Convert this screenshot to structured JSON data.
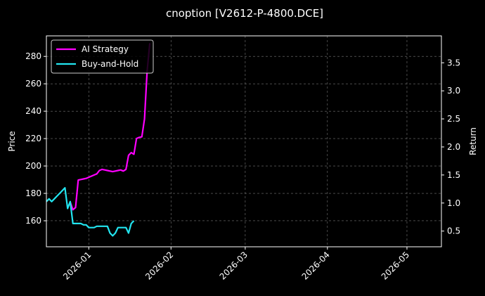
{
  "chart_data": {
    "type": "line",
    "title": "cnoption [V2612-P-4800.DCE]",
    "ylabel_left": "Price",
    "ylabel_right": "Return",
    "xlabel": "",
    "grid": true,
    "legend_position": "top-left",
    "x_range": [
      "2025-12-16",
      "2026-05-14"
    ],
    "ylim_left": [
      141,
      295
    ],
    "ylim_right": [
      0.22,
      3.98
    ],
    "x_ticks": [
      "2026-01-01",
      "2026-02-01",
      "2026-03-01",
      "2026-04-01",
      "2026-05-01"
    ],
    "x_tick_labels": [
      "2026-01",
      "2026-02",
      "2026-03",
      "2026-04",
      "2026-05"
    ],
    "y_left_ticks": [
      160,
      180,
      200,
      220,
      240,
      260,
      280
    ],
    "y_right_ticks": [
      0.5,
      1.0,
      1.5,
      2.0,
      2.5,
      3.0,
      3.5
    ],
    "y_right_tick_labels": [
      "0.5",
      "1.0",
      "1.5",
      "2.0",
      "2.5",
      "3.0",
      "3.5"
    ],
    "series": [
      {
        "name": "AI Strategy",
        "color": "#ff00ff",
        "axis": "right",
        "points": [
          [
            "2025-12-25",
            1.02
          ],
          [
            "2025-12-26",
            0.88
          ],
          [
            "2025-12-27",
            0.92
          ],
          [
            "2025-12-28",
            1.41
          ],
          [
            "2025-12-29",
            1.42
          ],
          [
            "2025-12-30",
            1.43
          ],
          [
            "2025-12-31",
            1.44
          ],
          [
            "2026-01-01",
            1.46
          ],
          [
            "2026-01-02",
            1.48
          ],
          [
            "2026-01-03",
            1.5
          ],
          [
            "2026-01-04",
            1.52
          ],
          [
            "2026-01-05",
            1.58
          ],
          [
            "2026-01-06",
            1.6
          ],
          [
            "2026-01-07",
            1.59
          ],
          [
            "2026-01-08",
            1.58
          ],
          [
            "2026-01-09",
            1.57
          ],
          [
            "2026-01-10",
            1.56
          ],
          [
            "2026-01-11",
            1.57
          ],
          [
            "2026-01-12",
            1.58
          ],
          [
            "2026-01-13",
            1.59
          ],
          [
            "2026-01-14",
            1.57
          ],
          [
            "2026-01-15",
            1.6
          ],
          [
            "2026-01-16",
            1.85
          ],
          [
            "2026-01-17",
            1.9
          ],
          [
            "2026-01-18",
            1.87
          ],
          [
            "2026-01-19",
            2.15
          ],
          [
            "2026-01-20",
            2.17
          ],
          [
            "2026-01-21",
            2.18
          ],
          [
            "2026-01-22",
            2.5
          ],
          [
            "2026-01-23",
            3.35
          ],
          [
            "2026-01-24",
            3.85
          ]
        ]
      },
      {
        "name": "Buy-and-Hold",
        "color": "#22e5f0",
        "axis": "left",
        "points": [
          [
            "2025-12-16",
            174
          ],
          [
            "2025-12-17",
            176
          ],
          [
            "2025-12-18",
            174
          ],
          [
            "2025-12-19",
            176
          ],
          [
            "2025-12-20",
            178
          ],
          [
            "2025-12-21",
            180
          ],
          [
            "2025-12-22",
            182
          ],
          [
            "2025-12-23",
            184
          ],
          [
            "2025-12-24",
            169
          ],
          [
            "2025-12-25",
            174
          ],
          [
            "2025-12-26",
            158
          ],
          [
            "2025-12-27",
            158
          ],
          [
            "2025-12-28",
            158
          ],
          [
            "2025-12-29",
            158
          ],
          [
            "2025-12-30",
            157
          ],
          [
            "2025-12-31",
            157
          ],
          [
            "2026-01-01",
            155
          ],
          [
            "2026-01-02",
            155
          ],
          [
            "2026-01-03",
            155
          ],
          [
            "2026-01-04",
            156
          ],
          [
            "2026-01-05",
            156
          ],
          [
            "2026-01-06",
            156
          ],
          [
            "2026-01-07",
            156
          ],
          [
            "2026-01-08",
            156
          ],
          [
            "2026-01-09",
            151
          ],
          [
            "2026-01-10",
            149
          ],
          [
            "2026-01-11",
            151
          ],
          [
            "2026-01-12",
            155
          ],
          [
            "2026-01-13",
            155
          ],
          [
            "2026-01-14",
            155
          ],
          [
            "2026-01-15",
            155
          ],
          [
            "2026-01-16",
            151
          ],
          [
            "2026-01-17",
            158
          ],
          [
            "2026-01-18",
            160
          ]
        ]
      }
    ]
  }
}
